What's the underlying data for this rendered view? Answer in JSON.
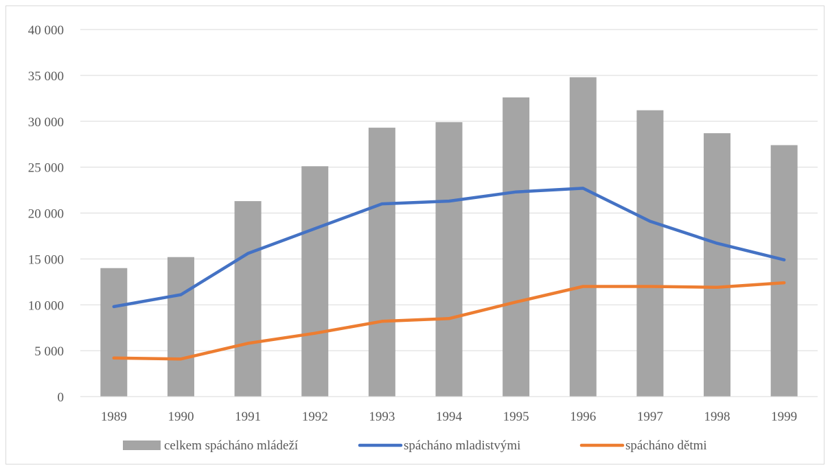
{
  "chart_data": {
    "type": "bar",
    "categories": [
      "1989",
      "1990",
      "1991",
      "1992",
      "1993",
      "1994",
      "1995",
      "1996",
      "1997",
      "1998",
      "1999"
    ],
    "series": [
      {
        "name": "celkem spácháno mládeží",
        "type": "bar",
        "color": "#a5a5a5",
        "values": [
          14000,
          15200,
          21300,
          25100,
          29300,
          29900,
          32600,
          34800,
          31200,
          28700,
          27400
        ]
      },
      {
        "name": "spácháno mladistvými",
        "type": "line",
        "color": "#4472c4",
        "values": [
          9800,
          11100,
          15600,
          18300,
          21000,
          21300,
          22300,
          22700,
          19100,
          16700,
          14900
        ]
      },
      {
        "name": "spácháno dětmi",
        "type": "line",
        "color": "#ed7d31",
        "values": [
          4200,
          4100,
          5800,
          6900,
          8200,
          8500,
          10300,
          12000,
          12000,
          11900,
          12400
        ]
      }
    ],
    "ylim": [
      0,
      40000
    ],
    "yticks": [
      0,
      5000,
      10000,
      15000,
      20000,
      25000,
      30000,
      35000,
      40000
    ],
    "ytick_labels": [
      "0",
      "5 000",
      "10 000",
      "15 000",
      "20 000",
      "25 000",
      "30 000",
      "35 000",
      "40 000"
    ],
    "grid": true,
    "legend": "bottom",
    "title": "",
    "xlabel": "",
    "ylabel": ""
  }
}
